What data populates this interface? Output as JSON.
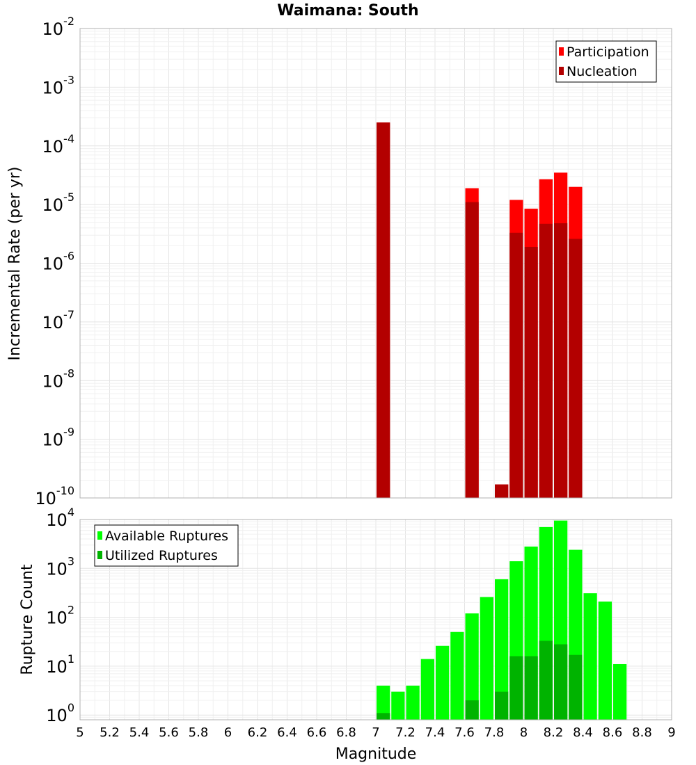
{
  "chart_data": [
    {
      "type": "bar",
      "title": "Waimana: South",
      "ylabel": "Incremental Rate (per yr)",
      "xlabel": "",
      "yscale": "log",
      "ylim": [
        1e-10,
        0.01
      ],
      "xlim": [
        5,
        9
      ],
      "bar_width": 0.1,
      "legend_position": "top-right",
      "grid": true,
      "y_ticks": [
        {
          "base": "10",
          "exp": "-10"
        },
        {
          "base": "10",
          "exp": "-9"
        },
        {
          "base": "10",
          "exp": "-8"
        },
        {
          "base": "10",
          "exp": "-7"
        },
        {
          "base": "10",
          "exp": "-6"
        },
        {
          "base": "10",
          "exp": "-5"
        },
        {
          "base": "10",
          "exp": "-4"
        },
        {
          "base": "10",
          "exp": "-3"
        },
        {
          "base": "10",
          "exp": "-2"
        }
      ],
      "series": [
        {
          "name": "Participation",
          "color": "#ff0000",
          "points": [
            {
              "x": 7.05,
              "y": 0.00025
            },
            {
              "x": 7.65,
              "y": 1.9e-05
            },
            {
              "x": 7.85,
              "y": 1.7e-10
            },
            {
              "x": 7.95,
              "y": 1.2e-05
            },
            {
              "x": 8.05,
              "y": 8.5e-06
            },
            {
              "x": 8.15,
              "y": 2.7e-05
            },
            {
              "x": 8.25,
              "y": 3.5e-05
            },
            {
              "x": 8.35,
              "y": 2e-05
            }
          ]
        },
        {
          "name": "Nucleation",
          "color": "#b30000",
          "points": [
            {
              "x": 7.05,
              "y": 0.00025
            },
            {
              "x": 7.65,
              "y": 1.1e-05
            },
            {
              "x": 7.85,
              "y": 1.7e-10
            },
            {
              "x": 7.95,
              "y": 3.3e-06
            },
            {
              "x": 8.05,
              "y": 1.9e-06
            },
            {
              "x": 8.15,
              "y": 4.7e-06
            },
            {
              "x": 8.25,
              "y": 4.8e-06
            },
            {
              "x": 8.35,
              "y": 2.6e-06
            }
          ]
        }
      ]
    },
    {
      "type": "bar",
      "title": "",
      "ylabel": "Rupture Count",
      "xlabel": "Magnitude",
      "yscale": "log",
      "ylim": [
        0.8,
        10000
      ],
      "xlim": [
        5,
        9
      ],
      "bar_width": 0.1,
      "legend_position": "top-left",
      "grid": true,
      "x_ticks": [
        "5",
        "5.2",
        "5.4",
        "5.6",
        "5.8",
        "6",
        "6.2",
        "6.4",
        "6.6",
        "6.8",
        "7",
        "7.2",
        "7.4",
        "7.6",
        "7.8",
        "8",
        "8.2",
        "8.4",
        "8.6",
        "8.8",
        "9"
      ],
      "y_ticks": [
        {
          "base": "10",
          "exp": "0"
        },
        {
          "base": "10",
          "exp": "1"
        },
        {
          "base": "10",
          "exp": "2"
        },
        {
          "base": "10",
          "exp": "3"
        },
        {
          "base": "10",
          "exp": "4"
        }
      ],
      "series": [
        {
          "name": "Available Ruptures",
          "color": "#00ff00",
          "points": [
            {
              "x": 7.05,
              "y": 4
            },
            {
              "x": 7.15,
              "y": 3
            },
            {
              "x": 7.25,
              "y": 4
            },
            {
              "x": 7.35,
              "y": 14
            },
            {
              "x": 7.45,
              "y": 26
            },
            {
              "x": 7.55,
              "y": 50
            },
            {
              "x": 7.65,
              "y": 120
            },
            {
              "x": 7.75,
              "y": 260
            },
            {
              "x": 7.85,
              "y": 600
            },
            {
              "x": 7.95,
              "y": 1400
            },
            {
              "x": 8.05,
              "y": 2800
            },
            {
              "x": 8.15,
              "y": 7000
            },
            {
              "x": 8.25,
              "y": 9500
            },
            {
              "x": 8.35,
              "y": 2400
            },
            {
              "x": 8.45,
              "y": 310
            },
            {
              "x": 8.55,
              "y": 210
            },
            {
              "x": 8.65,
              "y": 11
            }
          ]
        },
        {
          "name": "Utilized Ruptures",
          "color": "#00b300",
          "points": [
            {
              "x": 7.05,
              "y": 1.1
            },
            {
              "x": 7.65,
              "y": 2
            },
            {
              "x": 7.85,
              "y": 3
            },
            {
              "x": 7.95,
              "y": 16
            },
            {
              "x": 8.05,
              "y": 16
            },
            {
              "x": 8.15,
              "y": 33
            },
            {
              "x": 8.25,
              "y": 28
            },
            {
              "x": 8.35,
              "y": 17
            }
          ]
        }
      ]
    }
  ]
}
